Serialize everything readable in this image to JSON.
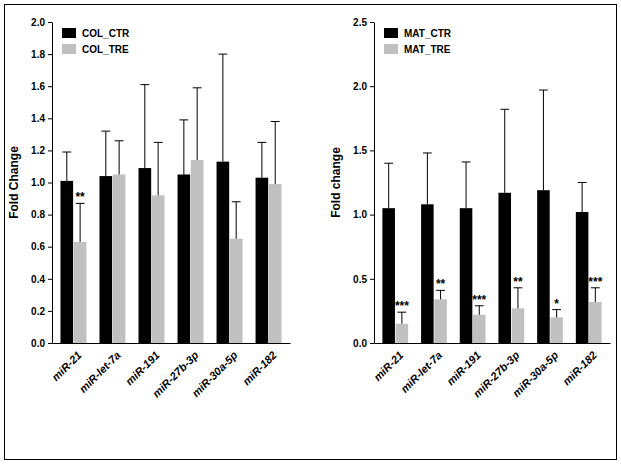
{
  "chart_data": [
    {
      "type": "bar",
      "y_label": "Fold Change",
      "categories": [
        "miR-21",
        "miR-let-7a",
        "miR-191",
        "miR-27b-3p",
        "miR-30a-5p",
        "miR-182"
      ],
      "series": [
        {
          "name": "COL_CTR",
          "color": "#000000",
          "values": [
            1.01,
            1.04,
            1.09,
            1.05,
            1.13,
            1.03
          ],
          "errors": [
            0.18,
            0.28,
            0.52,
            0.34,
            0.67,
            0.22
          ]
        },
        {
          "name": "COL_TRE",
          "color": "#c0c0c0",
          "values": [
            0.63,
            1.05,
            0.92,
            1.14,
            0.65,
            0.99
          ],
          "errors": [
            0.24,
            0.21,
            0.33,
            0.45,
            0.23,
            0.39
          ],
          "significance": [
            "**",
            null,
            null,
            null,
            null,
            null
          ]
        }
      ],
      "ylim": [
        0,
        2.0
      ],
      "yticks": [
        {
          "value": 0,
          "label": "0.0"
        },
        {
          "value": 0.2,
          "label": "0.2"
        },
        {
          "value": 0.4,
          "label": "0.4"
        },
        {
          "value": 0.6,
          "label": "0.6"
        },
        {
          "value": 0.8,
          "label": "0.8"
        },
        {
          "value": 1.0,
          "label": "1.0"
        },
        {
          "value": 1.2,
          "label": "1.2"
        },
        {
          "value": 1.4,
          "label": "1.4"
        },
        {
          "value": 1.6,
          "label": "1.6"
        },
        {
          "value": 1.8,
          "label": "1.8"
        },
        {
          "value": 2.0,
          "label": "2.0"
        }
      ],
      "grid": false,
      "legend": "upper left"
    },
    {
      "type": "bar",
      "y_label": "Fold change",
      "categories": [
        "miR-21",
        "miR-let-7a",
        "miR-191",
        "miR-27b-3p",
        "miR-30a-5p",
        "miR-182"
      ],
      "series": [
        {
          "name": "MAT_CTR",
          "color": "#000000",
          "values": [
            1.05,
            1.08,
            1.05,
            1.17,
            1.19,
            1.02
          ],
          "errors": [
            0.35,
            0.4,
            0.36,
            0.65,
            0.78,
            0.23
          ]
        },
        {
          "name": "MAT_TRE",
          "color": "#c0c0c0",
          "values": [
            0.15,
            0.34,
            0.22,
            0.27,
            0.2,
            0.32
          ],
          "errors": [
            0.09,
            0.07,
            0.07,
            0.16,
            0.06,
            0.11
          ],
          "significance": [
            "***",
            "**",
            "***",
            "**",
            "*",
            "***"
          ]
        }
      ],
      "ylim": [
        0,
        2.5
      ],
      "yticks": [
        {
          "value": 0,
          "label": "0.0"
        },
        {
          "value": 0.5,
          "label": "0.5"
        },
        {
          "value": 1.0,
          "label": "1.0"
        },
        {
          "value": 1.5,
          "label": "1.5"
        },
        {
          "value": 2.0,
          "label": "2.0"
        },
        {
          "value": 2.5,
          "label": "2.5"
        }
      ],
      "grid": false,
      "legend": "upper left"
    }
  ]
}
